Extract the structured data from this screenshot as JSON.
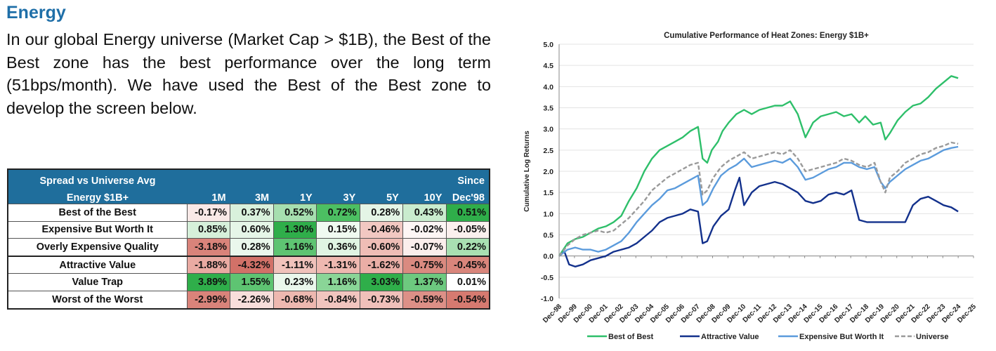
{
  "section": {
    "title": "Energy",
    "intro": "In our global Energy universe (Market Cap > $1B), the Best of the Best zone has the best performance over the long term (51bps/month). We have used the Best of the Best zone to develop the screen below."
  },
  "table": {
    "header_line1": "Spread vs Universe Avg",
    "header_line2": "Energy $1B+",
    "since_label": "Since",
    "columns": [
      "1M",
      "3M",
      "1Y",
      "3Y",
      "5Y",
      "10Y",
      "Dec'98"
    ],
    "rows": [
      {
        "label": "Best of the Best",
        "values": [
          "-0.17%",
          "0.37%",
          "0.52%",
          "0.72%",
          "0.28%",
          "0.43%",
          "0.51%"
        ],
        "colors": [
          "#f9e9e7",
          "#d9f1dc",
          "#a6dfaf",
          "#4cbf62",
          "#e4f5e6",
          "#c9ecce",
          "#2fae4a"
        ]
      },
      {
        "label": "Expensive But Worth It",
        "values": [
          "0.85%",
          "0.60%",
          "1.30%",
          "0.15%",
          "-0.46%",
          "-0.02%",
          "-0.05%"
        ],
        "colors": [
          "#d6f0da",
          "#e6f6e8",
          "#2fae4a",
          "#f0faf1",
          "#f2c8c2",
          "#fdf6f5",
          "#fbf0ee"
        ]
      },
      {
        "label": "Overly Expensive Quality",
        "values": [
          "-3.18%",
          "0.28%",
          "1.16%",
          "0.36%",
          "-0.60%",
          "-0.07%",
          "0.22%"
        ],
        "colors": [
          "#d9837a",
          "#eaf7ec",
          "#5ec472",
          "#e0f4e3",
          "#efbdb6",
          "#fbeeec",
          "#a9e0b2"
        ]
      },
      {
        "label": "Attractive Value",
        "values": [
          "-1.88%",
          "-4.32%",
          "-1.11%",
          "-1.31%",
          "-1.62%",
          "-0.75%",
          "-0.45%"
        ],
        "colors": [
          "#e9aaa2",
          "#d27168",
          "#f0c2bb",
          "#eeb8b0",
          "#eaaea6",
          "#da8a80",
          "#d9857b"
        ]
      },
      {
        "label": "Value Trap",
        "values": [
          "3.89%",
          "1.55%",
          "0.23%",
          "1.16%",
          "3.03%",
          "1.37%",
          "0.01%"
        ],
        "colors": [
          "#2fae4a",
          "#5ec472",
          "#eaf7ec",
          "#8ad597",
          "#2fae4a",
          "#6dc97f",
          "#ffffff"
        ]
      },
      {
        "label": "Worst of the Worst",
        "values": [
          "-2.99%",
          "-2.26%",
          "-0.68%",
          "-0.84%",
          "-0.73%",
          "-0.59%",
          "-0.54%"
        ],
        "colors": [
          "#d9837a",
          "#f7dedb",
          "#eeb8b0",
          "#f1c5bf",
          "#f0c0ba",
          "#dd9087",
          "#d67a70"
        ]
      }
    ]
  },
  "chart_data": {
    "type": "line",
    "title": "Cumulative Performance of Heat Zones: Energy $1B+",
    "xlabel": "",
    "ylabel": "Cumulative Log Returns",
    "ylim": [
      -1.0,
      5.0
    ],
    "yticks": [
      "5.0",
      "4.5",
      "4.0",
      "3.5",
      "3.0",
      "2.5",
      "2.0",
      "1.5",
      "1.0",
      "0.5",
      "0.0",
      "-0.5",
      "-1.0"
    ],
    "x_ticks": [
      "Dec-98",
      "Dec-99",
      "Dec-00",
      "Dec-01",
      "Dec-02",
      "Dec-03",
      "Dec-04",
      "Dec-05",
      "Dec-06",
      "Dec-07",
      "Dec-08",
      "Dec-09",
      "Dec-10",
      "Dec-11",
      "Dec-12",
      "Dec-13",
      "Dec-14",
      "Dec-15",
      "Dec-16",
      "Dec-17",
      "Dec-18",
      "Dec-19",
      "Dec-20",
      "Dec-21",
      "Dec-22",
      "Dec-23",
      "Dec-24",
      "Dec-25"
    ],
    "grid": true,
    "legend_position": "bottom",
    "series": [
      {
        "name": "Best of Best",
        "color": "#2ebf6a",
        "dash": "solid",
        "x": [
          1998.95,
          1999.5,
          2000.0,
          2000.5,
          2001.0,
          2001.5,
          2002.0,
          2002.5,
          2003.0,
          2003.5,
          2004.0,
          2004.5,
          2005.0,
          2005.5,
          2006.0,
          2006.5,
          2007.0,
          2007.5,
          2008.0,
          2008.3,
          2008.6,
          2008.9,
          2009.3,
          2009.6,
          2010.0,
          2010.5,
          2011.0,
          2011.5,
          2012.0,
          2012.5,
          2013.0,
          2013.5,
          2014.0,
          2014.5,
          2015.0,
          2015.5,
          2016.0,
          2016.5,
          2017.0,
          2017.5,
          2018.0,
          2018.5,
          2018.9,
          2019.4,
          2019.9,
          2020.2,
          2020.5,
          2021.0,
          2021.5,
          2022.0,
          2022.5,
          2023.0,
          2023.5,
          2024.0,
          2024.5,
          2024.95
        ],
        "y": [
          0.0,
          0.3,
          0.4,
          0.45,
          0.55,
          0.65,
          0.7,
          0.8,
          0.95,
          1.3,
          1.6,
          2.0,
          2.3,
          2.5,
          2.6,
          2.7,
          2.8,
          2.95,
          3.05,
          2.3,
          2.2,
          2.5,
          2.7,
          2.95,
          3.15,
          3.35,
          3.45,
          3.35,
          3.45,
          3.5,
          3.55,
          3.55,
          3.65,
          3.35,
          2.8,
          3.15,
          3.3,
          3.35,
          3.4,
          3.3,
          3.35,
          3.15,
          3.3,
          3.1,
          3.15,
          2.75,
          2.9,
          3.2,
          3.4,
          3.55,
          3.6,
          3.75,
          3.95,
          4.1,
          4.25,
          4.2
        ]
      },
      {
        "name": "Attractive Value",
        "color": "#13318c",
        "dash": "solid",
        "x": [
          1998.95,
          1999.3,
          1999.6,
          2000.0,
          2000.5,
          2001.0,
          2001.5,
          2002.0,
          2002.5,
          2003.0,
          2003.5,
          2004.0,
          2004.5,
          2005.0,
          2005.5,
          2006.0,
          2006.5,
          2007.0,
          2007.5,
          2008.0,
          2008.3,
          2008.6,
          2009.0,
          2009.5,
          2010.0,
          2010.4,
          2010.7,
          2011.0,
          2011.5,
          2012.0,
          2012.5,
          2013.0,
          2013.5,
          2014.0,
          2014.5,
          2015.0,
          2015.5,
          2016.0,
          2016.5,
          2017.0,
          2017.5,
          2018.0,
          2018.5,
          2019.0,
          2019.5,
          2020.0,
          2020.5,
          2021.0,
          2021.5,
          2022.0,
          2022.5,
          2023.0,
          2023.5,
          2024.0,
          2024.5,
          2024.95
        ],
        "y": [
          0.0,
          0.1,
          -0.2,
          -0.25,
          -0.2,
          -0.1,
          -0.05,
          0.0,
          0.1,
          0.15,
          0.2,
          0.3,
          0.45,
          0.6,
          0.8,
          0.9,
          0.95,
          1.0,
          1.1,
          1.05,
          0.3,
          0.35,
          0.7,
          0.95,
          1.1,
          1.55,
          1.85,
          1.2,
          1.5,
          1.65,
          1.7,
          1.75,
          1.7,
          1.6,
          1.5,
          1.3,
          1.25,
          1.3,
          1.45,
          1.5,
          1.45,
          1.55,
          0.85,
          0.8,
          0.8,
          0.8,
          0.8,
          0.8,
          0.8,
          1.2,
          1.35,
          1.4,
          1.3,
          1.2,
          1.15,
          1.05
        ]
      },
      {
        "name": "Expensive But Worth It",
        "color": "#5b9bdc",
        "dash": "solid",
        "x": [
          1998.95,
          1999.5,
          2000.0,
          2000.5,
          2001.0,
          2001.5,
          2002.0,
          2002.5,
          2003.0,
          2003.5,
          2004.0,
          2004.5,
          2005.0,
          2005.5,
          2006.0,
          2006.5,
          2007.0,
          2007.5,
          2008.0,
          2008.3,
          2008.6,
          2009.0,
          2009.5,
          2010.0,
          2010.5,
          2011.0,
          2011.5,
          2012.0,
          2012.5,
          2013.0,
          2013.5,
          2014.0,
          2014.5,
          2015.0,
          2015.5,
          2016.0,
          2016.5,
          2017.0,
          2017.5,
          2018.0,
          2018.5,
          2019.0,
          2019.5,
          2019.9,
          2020.2,
          2020.5,
          2021.0,
          2021.5,
          2022.0,
          2022.5,
          2023.0,
          2023.5,
          2024.0,
          2024.5,
          2024.95
        ],
        "y": [
          0.0,
          0.15,
          0.2,
          0.15,
          0.15,
          0.1,
          0.15,
          0.25,
          0.35,
          0.55,
          0.8,
          1.0,
          1.2,
          1.35,
          1.55,
          1.6,
          1.7,
          1.8,
          1.9,
          1.2,
          1.3,
          1.6,
          1.9,
          2.05,
          2.15,
          2.3,
          2.1,
          2.15,
          2.2,
          2.25,
          2.2,
          2.3,
          2.1,
          1.8,
          1.85,
          1.95,
          2.05,
          2.1,
          2.2,
          2.2,
          2.1,
          2.05,
          2.1,
          1.75,
          1.6,
          1.75,
          1.9,
          2.05,
          2.15,
          2.25,
          2.3,
          2.4,
          2.5,
          2.55,
          2.58
        ]
      },
      {
        "name": "Universe",
        "color": "#9a9a9a",
        "dash": "dashed",
        "x": [
          1998.95,
          1999.5,
          2000.0,
          2000.5,
          2001.0,
          2001.5,
          2002.0,
          2002.5,
          2003.0,
          2003.5,
          2004.0,
          2004.5,
          2005.0,
          2005.5,
          2006.0,
          2006.5,
          2007.0,
          2007.5,
          2008.0,
          2008.3,
          2008.6,
          2009.0,
          2009.5,
          2010.0,
          2010.5,
          2011.0,
          2011.5,
          2012.0,
          2012.5,
          2013.0,
          2013.5,
          2014.0,
          2014.5,
          2015.0,
          2015.5,
          2016.0,
          2016.5,
          2017.0,
          2017.5,
          2018.0,
          2018.5,
          2019.0,
          2019.5,
          2019.9,
          2020.2,
          2020.5,
          2021.0,
          2021.5,
          2022.0,
          2022.5,
          2023.0,
          2023.5,
          2024.0,
          2024.5,
          2024.95
        ],
        "y": [
          0.0,
          0.25,
          0.4,
          0.5,
          0.55,
          0.6,
          0.55,
          0.6,
          0.75,
          0.9,
          1.1,
          1.3,
          1.55,
          1.7,
          1.85,
          1.95,
          2.05,
          2.15,
          2.2,
          1.45,
          1.55,
          1.85,
          2.1,
          2.25,
          2.35,
          2.45,
          2.3,
          2.35,
          2.4,
          2.45,
          2.4,
          2.5,
          2.3,
          2.0,
          2.05,
          2.1,
          2.15,
          2.2,
          2.3,
          2.25,
          2.15,
          2.1,
          2.2,
          1.75,
          1.5,
          1.85,
          2.0,
          2.2,
          2.3,
          2.4,
          2.45,
          2.55,
          2.6,
          2.68,
          2.65
        ]
      }
    ]
  }
}
